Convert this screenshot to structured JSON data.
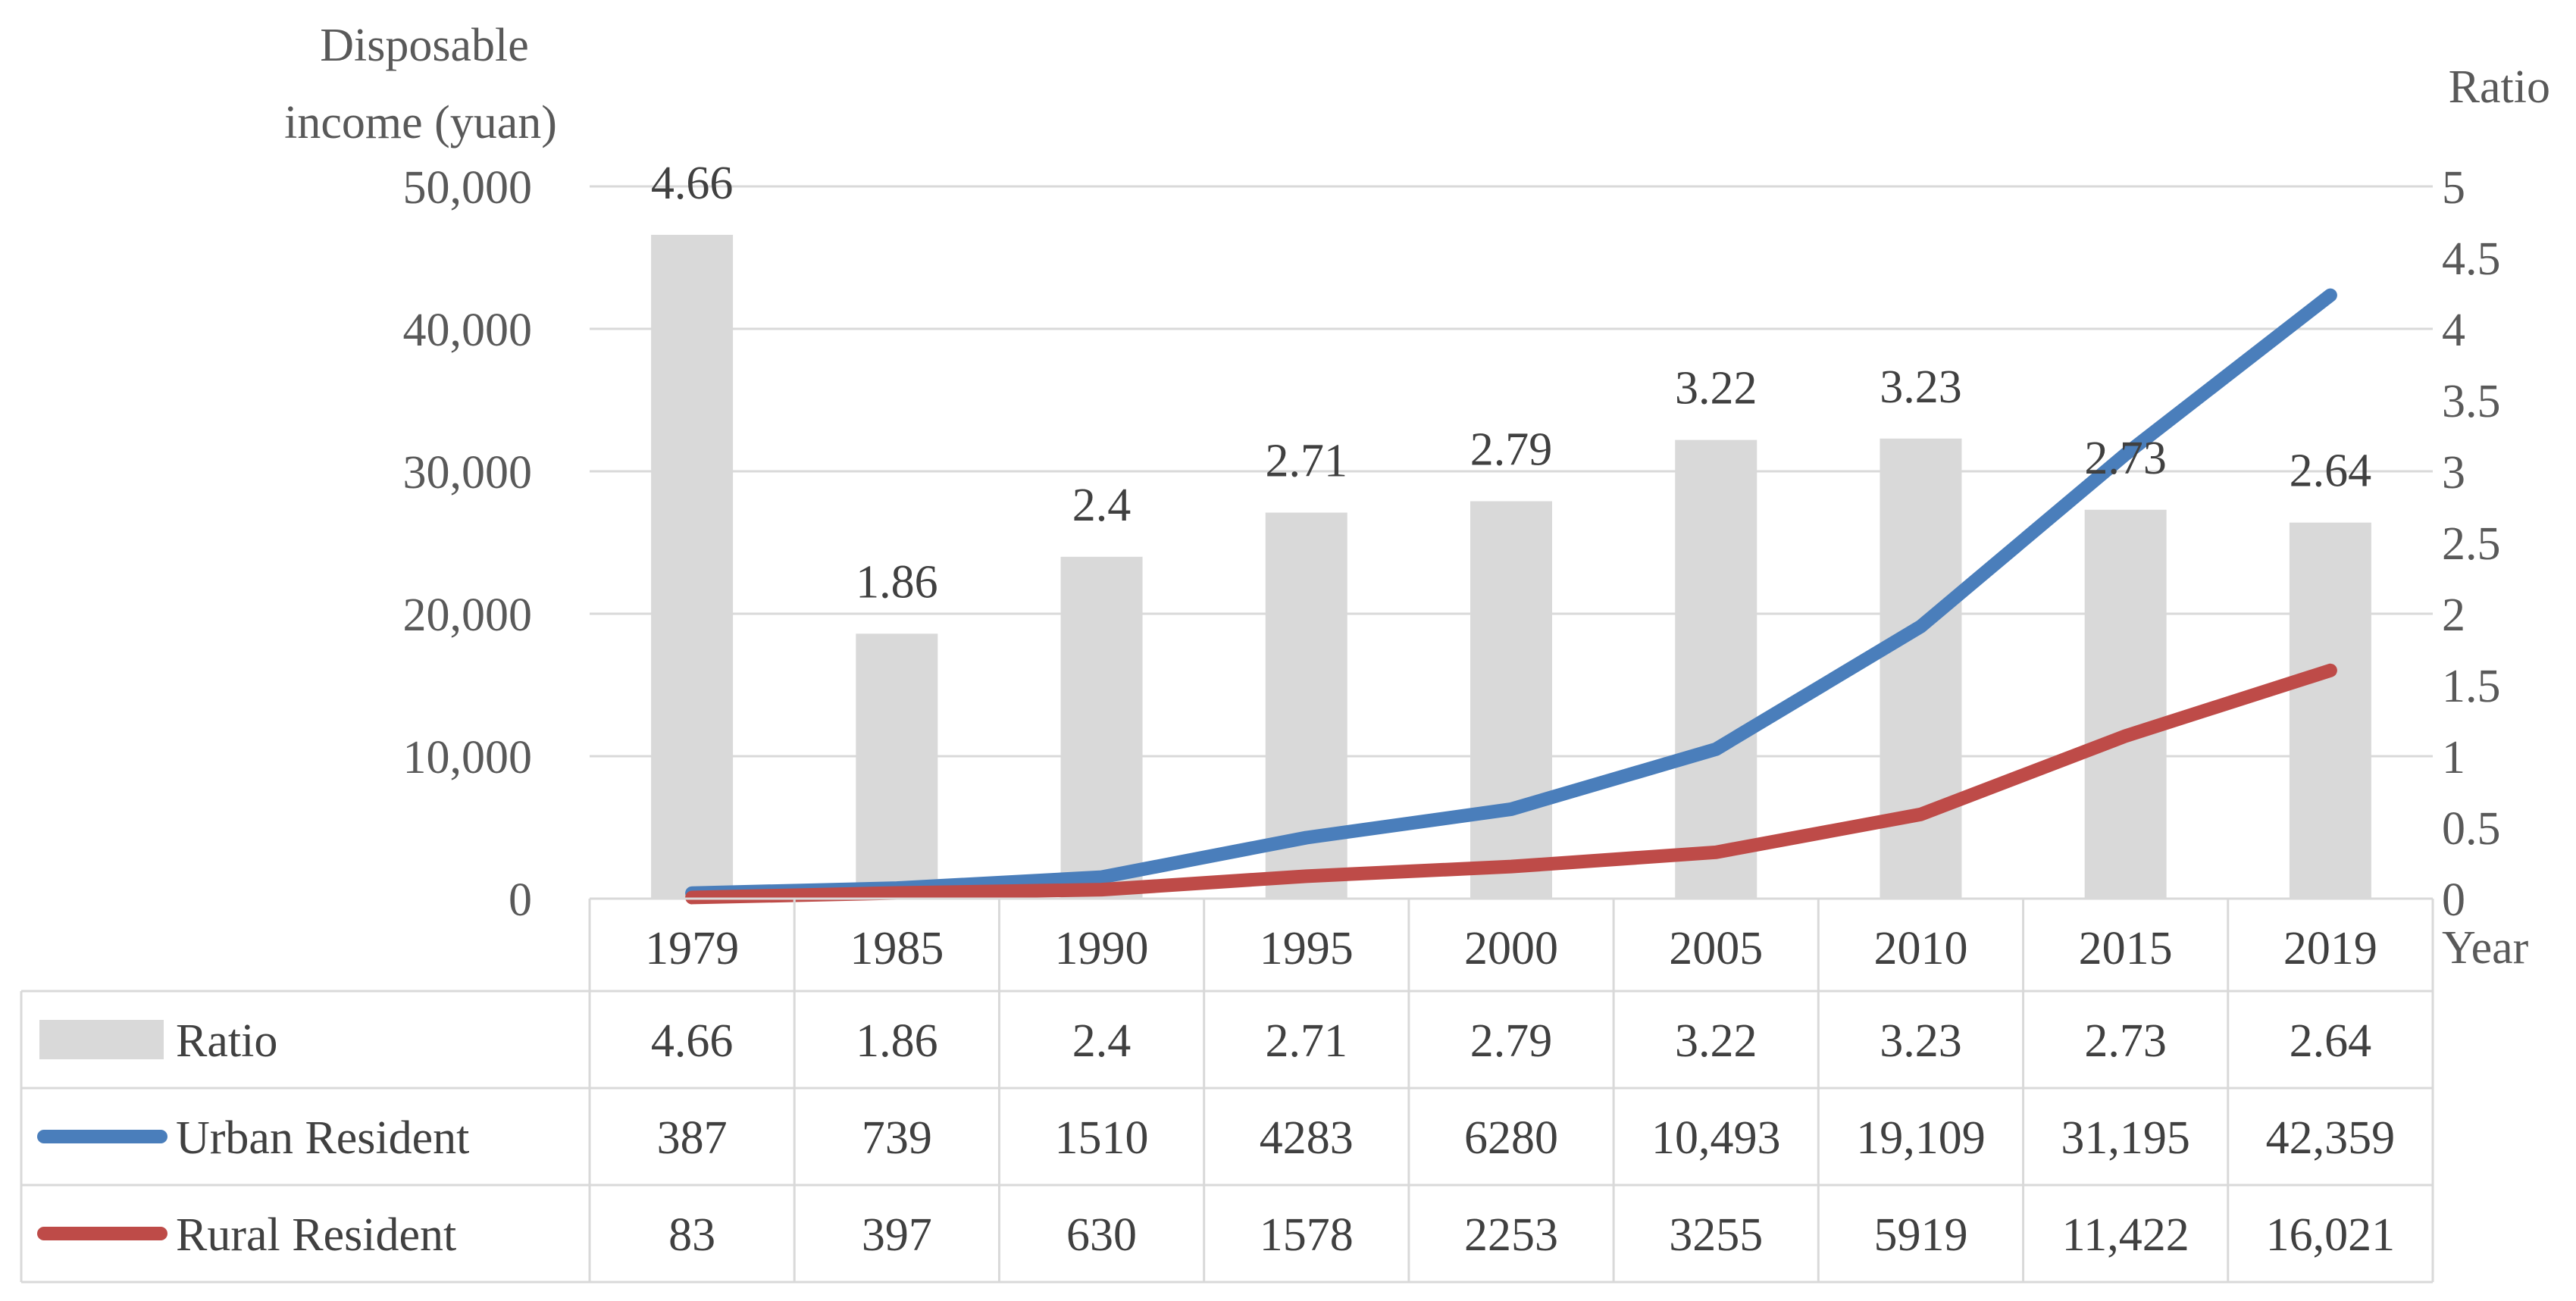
{
  "chart_data": {
    "type": "bar",
    "title": "",
    "y_left_label_line1": "Disposable",
    "y_left_label_line2": "income (yuan)",
    "y_right_label": "Ratio",
    "x_label": "Year",
    "categories": [
      "1979",
      "1985",
      "1990",
      "1995",
      "2000",
      "2005",
      "2010",
      "2015",
      "2019"
    ],
    "ylim_left": [
      0,
      50000
    ],
    "ylim_right": [
      0,
      5
    ],
    "y_left_ticks": [
      "0",
      "10,000",
      "20,000",
      "30,000",
      "40,000",
      "50,000"
    ],
    "y_left_tick_values": [
      0,
      10000,
      20000,
      30000,
      40000,
      50000
    ],
    "y_right_ticks": [
      "0",
      "0.5",
      "1",
      "1.5",
      "2",
      "2.5",
      "3",
      "3.5",
      "4",
      "4.5",
      "5"
    ],
    "y_right_tick_values": [
      0,
      0.5,
      1,
      1.5,
      2,
      2.5,
      3,
      3.5,
      4,
      4.5,
      5
    ],
    "grid": true,
    "series": [
      {
        "name": "Ratio",
        "kind": "bar",
        "axis": "right",
        "color": "#d9d9d9",
        "values": [
          4.66,
          1.86,
          2.4,
          2.71,
          2.79,
          3.22,
          3.23,
          2.73,
          2.64
        ],
        "labels": [
          "4.66",
          "1.86",
          "2.4",
          "2.71",
          "2.79",
          "3.22",
          "3.23",
          "2.73",
          "2.64"
        ]
      },
      {
        "name": "Urban Resident",
        "kind": "line",
        "axis": "left",
        "color": "#4a7ebb",
        "values": [
          387,
          739,
          1510,
          4283,
          6280,
          10493,
          19109,
          31195,
          42359
        ],
        "labels": [
          "387",
          "739",
          "1510",
          "4283",
          "6280",
          "10,493",
          "19,109",
          "31,195",
          "42,359"
        ]
      },
      {
        "name": "Rural Resident",
        "kind": "line",
        "axis": "left",
        "color": "#be4b48",
        "values": [
          83,
          397,
          630,
          1578,
          2253,
          3255,
          5919,
          11422,
          16021
        ],
        "labels": [
          "83",
          "397",
          "630",
          "1578",
          "2253",
          "3255",
          "5919",
          "11,422",
          "16,021"
        ]
      }
    ]
  }
}
